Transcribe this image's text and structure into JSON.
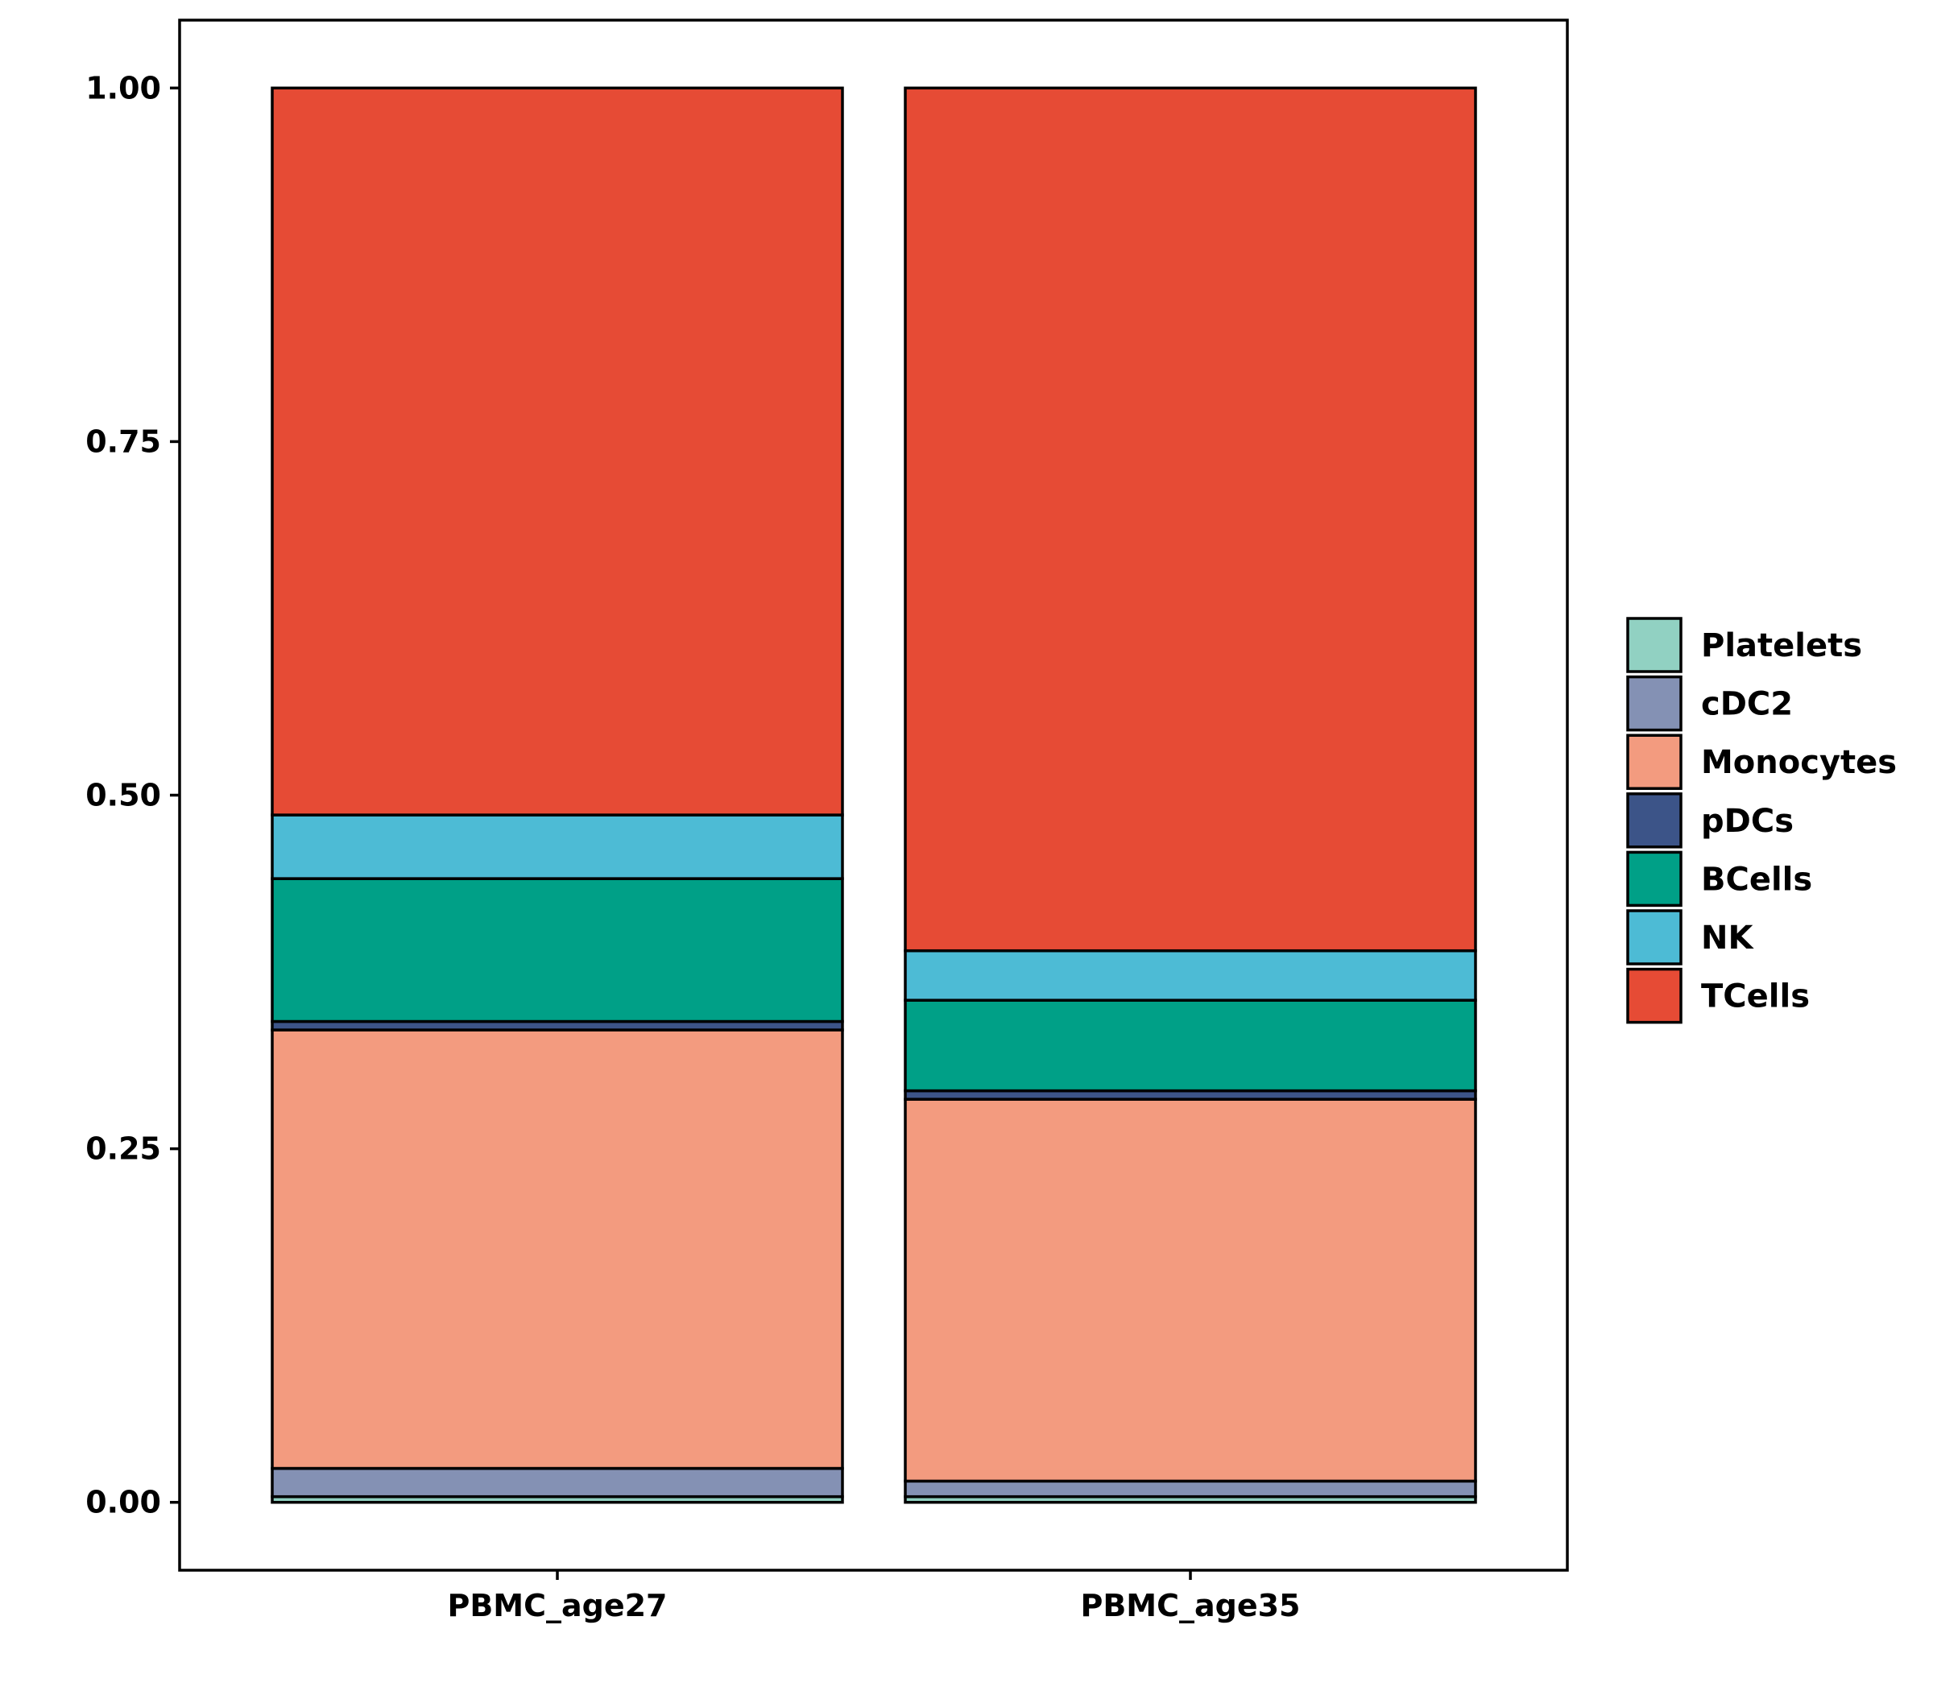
{
  "chart_data": {
    "type": "bar",
    "stacked": true,
    "title": "",
    "xlabel": "",
    "ylabel": "",
    "ylim": [
      -0.048,
      1.048
    ],
    "yticks": [
      "0.00",
      "0.25",
      "0.50",
      "0.75",
      "1.00"
    ],
    "categories": [
      "PBMC_age27",
      "PBMC_age35"
    ],
    "series": [
      {
        "name": "Platelets",
        "color": "#91D1C2",
        "values": [
          0.004,
          0.004
        ]
      },
      {
        "name": "cDC2",
        "color": "#8491B4",
        "values": [
          0.02,
          0.011
        ]
      },
      {
        "name": "Monocytes",
        "color": "#F39B7F",
        "values": [
          0.31,
          0.27
        ]
      },
      {
        "name": "pDCs",
        "color": "#3C5488",
        "values": [
          0.006,
          0.006
        ]
      },
      {
        "name": "BCells",
        "color": "#00A087",
        "values": [
          0.101,
          0.064
        ]
      },
      {
        "name": "NK",
        "color": "#4DBBD5",
        "values": [
          0.045,
          0.035
        ]
      },
      {
        "name": "TCells",
        "color": "#E64B35",
        "values": [
          0.514,
          0.61
        ]
      }
    ],
    "legend_position": "right",
    "grid": false
  }
}
